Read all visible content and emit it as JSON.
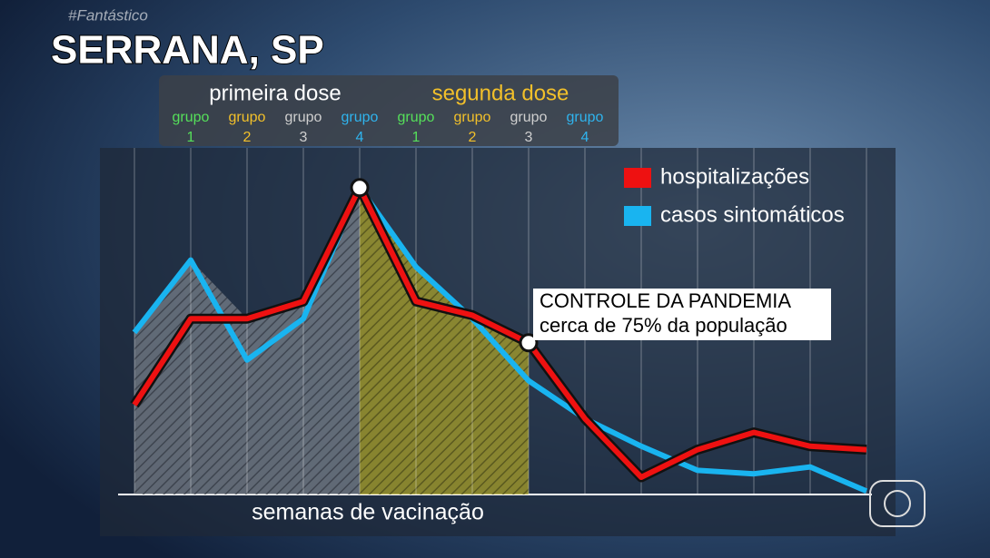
{
  "watermark": "#Fantástico",
  "chart_data": {
    "type": "line",
    "title": "SERRANA, SP",
    "x_label": "semanas de vacinação",
    "categories": [
      null,
      null,
      null,
      null,
      null,
      null,
      null,
      null,
      null,
      null,
      null,
      null,
      null,
      null
    ],
    "doses": [
      {
        "name": "primeira dose",
        "color": "#ffffff",
        "groups": [
          {
            "label": "grupo",
            "number": 1,
            "color": "#55e05a"
          },
          {
            "label": "grupo",
            "number": 2,
            "color": "#f2c02a"
          },
          {
            "label": "grupo",
            "number": 3,
            "color": "#cfcfcf"
          },
          {
            "label": "grupo",
            "number": 4,
            "color": "#2fb4ee"
          }
        ]
      },
      {
        "name": "segunda dose",
        "color": "#f2c02a",
        "groups": [
          {
            "label": "grupo",
            "number": 1,
            "color": "#55e05a"
          },
          {
            "label": "grupo",
            "number": 2,
            "color": "#f2c02a"
          },
          {
            "label": "grupo",
            "number": 3,
            "color": "#cfcfcf"
          },
          {
            "label": "grupo",
            "number": 4,
            "color": "#2fb4ee"
          }
        ]
      }
    ],
    "series": [
      {
        "name": "hospitalizações",
        "color": "#ee1111",
        "values": [
          26,
          51,
          51,
          56,
          89,
          56,
          52,
          44,
          22,
          5,
          13,
          18,
          14,
          13
        ]
      },
      {
        "name": "casos sintomáticos",
        "color": "#19b4f0",
        "values": [
          47,
          68,
          39,
          51,
          89,
          66,
          51,
          33,
          22,
          14,
          7,
          6,
          8,
          1
        ]
      }
    ],
    "ylim": [
      0,
      100
    ],
    "legend": "top-right",
    "annotations": [
      {
        "lines": [
          "CONTROLE DA PANDEMIA",
          "cerca de 75% da população"
        ]
      }
    ]
  }
}
